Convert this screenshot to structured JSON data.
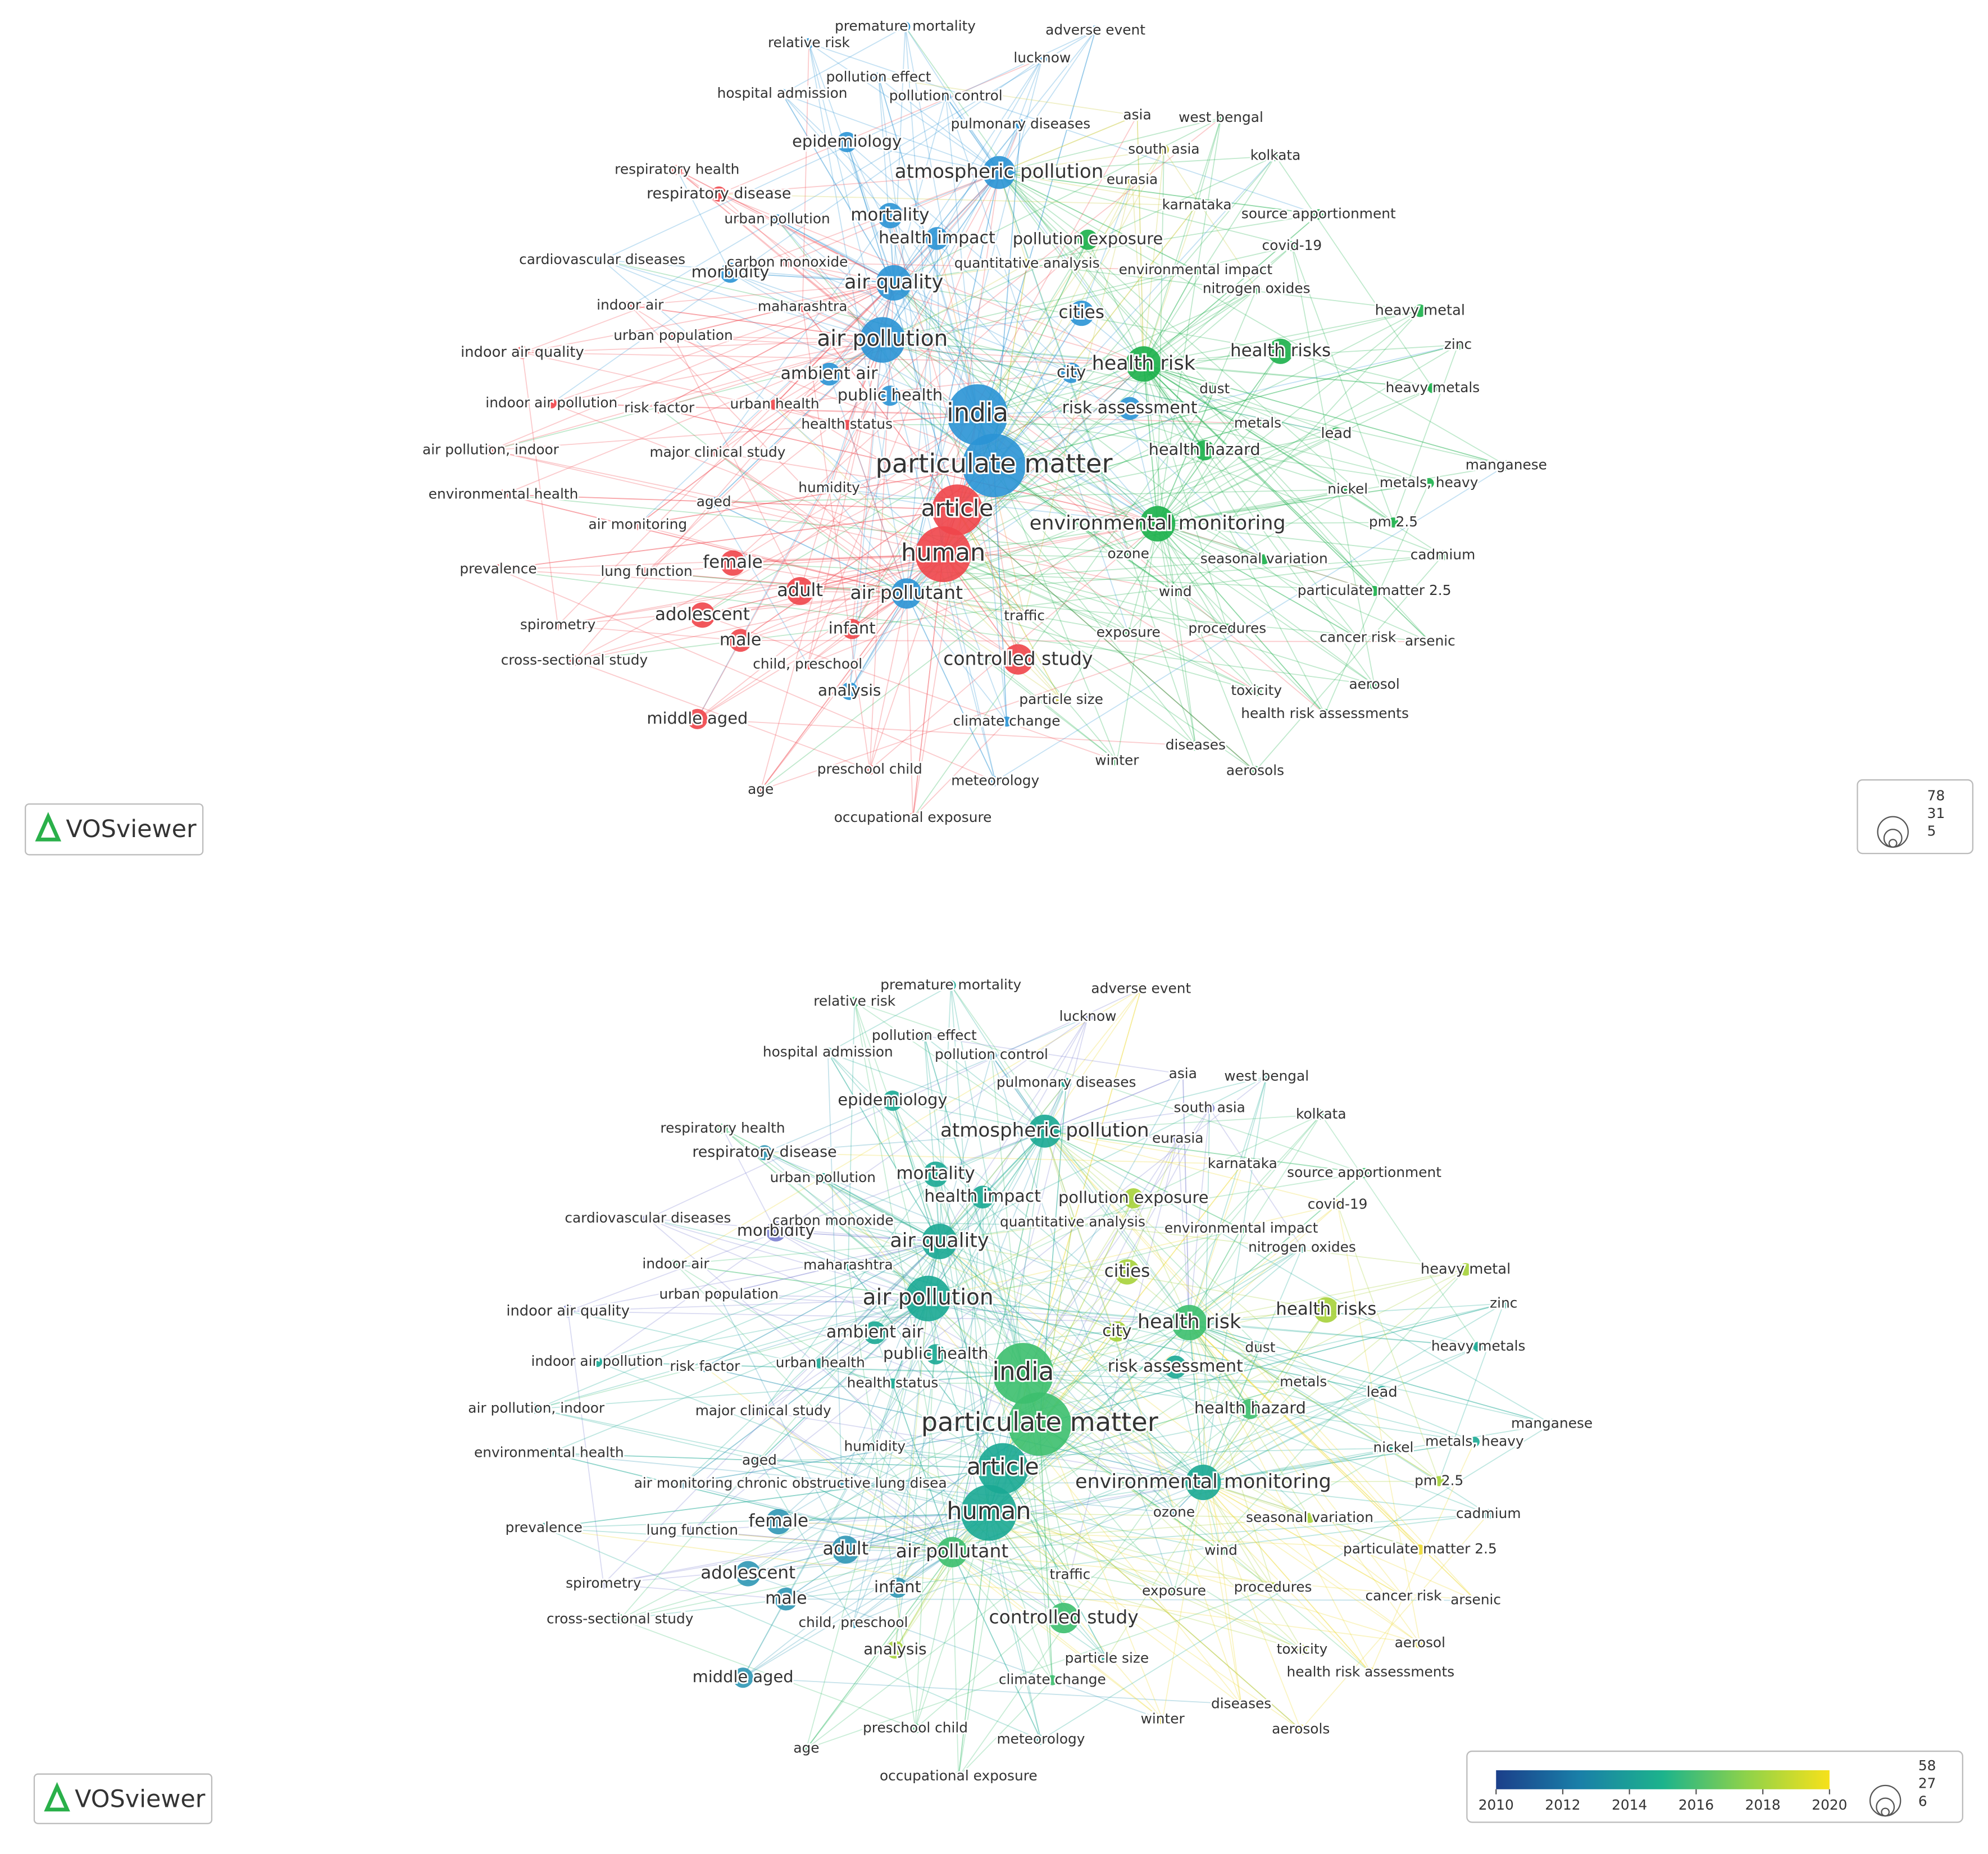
{
  "maps": [
    {
      "nodes": [
        "premature mortality",
        "relative risk",
        "adverse event",
        "lucknow",
        "pollution effect",
        "hospital admission",
        "pollution control",
        "pulmonary diseases",
        "asia",
        "west bengal",
        "south asia",
        "kolkata",
        "epidemiology",
        "atmospheric pollution",
        "eurasia",
        "respiratory health",
        "respiratory disease",
        "karnataka",
        "source apportionment",
        "urban pollution",
        "mortality",
        "health impact",
        "pollution exposure",
        "covid-19",
        "cardiovascular diseases",
        "morbidity",
        "carbon monoxide",
        "quantitative analysis",
        "environmental impact",
        "air quality",
        "nitrogen oxides",
        "indoor air",
        "maharashtra",
        "cities",
        "heavy metal",
        "urban population",
        "air pollution",
        "zinc",
        "indoor air quality",
        "health risks",
        "health risk",
        "ambient air",
        "city",
        "heavy metals",
        "indoor air pollution",
        "risk factor",
        "urban health",
        "public health",
        "dust",
        "india",
        "risk assessment",
        "health status",
        "metals",
        "lead",
        "air pollution, indoor",
        "major clinical study",
        "health hazard",
        "particulate matter",
        "manganese",
        "humidity",
        "metals, heavy",
        "nickel",
        "environmental health",
        "aged",
        "article",
        "environmental monitoring",
        "pm 2.5",
        "air monitoring",
        "human",
        "ozone",
        "seasonal variation",
        "cadmium",
        "prevalence",
        "lung function",
        "female",
        "adult",
        "air pollutant",
        "wind",
        "particulate matter 2.5",
        "spirometry",
        "adolescent",
        "infant",
        "traffic",
        "exposure",
        "procedures",
        "cancer risk",
        "arsenic",
        "male",
        "cross-sectional study",
        "child, preschool",
        "controlled study",
        "analysis",
        "particle size",
        "toxicity",
        "aerosol",
        "health risk assessments",
        "middle aged",
        "climate change",
        "diseases",
        "preschool child",
        "winter",
        "meteorology",
        "aerosols",
        "age",
        "occupational exposure"
      ],
      "cluster_colors": [
        "#f0454a",
        "#2a93d5",
        "#1bb04a",
        "#c9c83a",
        "#e98b2a"
      ],
      "cluster": [
        1,
        1,
        1,
        1,
        1,
        1,
        1,
        1,
        3,
        2,
        3,
        2,
        1,
        1,
        3,
        0,
        0,
        3,
        2,
        1,
        1,
        1,
        2,
        2,
        1,
        1,
        0,
        3,
        2,
        1,
        2,
        0,
        0,
        1,
        2,
        0,
        1,
        2,
        0,
        2,
        2,
        1,
        1,
        2,
        0,
        0,
        0,
        1,
        2,
        1,
        1,
        0,
        2,
        2,
        0,
        0,
        2,
        1,
        2,
        1,
        2,
        2,
        0,
        1,
        0,
        2,
        2,
        0,
        0,
        2,
        2,
        2,
        0,
        0,
        0,
        0,
        1,
        2,
        2,
        0,
        0,
        0,
        4,
        2,
        2,
        2,
        2,
        0,
        0,
        0,
        0,
        1,
        3,
        2,
        2,
        2,
        0,
        1,
        2,
        0,
        2,
        1,
        2,
        0,
        0
      ],
      "logo": "VOSviewer",
      "size_legend": [
        78,
        31,
        5
      ]
    },
    {
      "nodes": [
        "premature mortality",
        "relative risk",
        "adverse event",
        "lucknow",
        "pollution effect",
        "hospital admission",
        "pollution control",
        "pulmonary diseases",
        "asia",
        "west bengal",
        "south asia",
        "kolkata",
        "epidemiology",
        "atmospheric pollution",
        "eurasia",
        "respiratory health",
        "respiratory disease",
        "karnataka",
        "source apportionment",
        "urban pollution",
        "mortality",
        "health impact",
        "pollution exposure",
        "covid-19",
        "cardiovascular diseases",
        "morbidity",
        "carbon monoxide",
        "quantitative analysis",
        "environmental impact",
        "air quality",
        "nitrogen oxides",
        "indoor air",
        "maharashtra",
        "cities",
        "heavy metal",
        "urban population",
        "air pollution",
        "zinc",
        "indoor air quality",
        "health risks",
        "health risk",
        "ambient air",
        "city",
        "heavy metals",
        "indoor air pollution",
        "risk factor",
        "urban health",
        "public health",
        "dust",
        "india",
        "risk assessment",
        "health status",
        "metals",
        "lead",
        "air pollution, indoor",
        "major clinical study",
        "health hazard",
        "particulate matter",
        "manganese",
        "humidity",
        "metals, heavy",
        "nickel",
        "environmental health",
        "aged",
        "article",
        "environmental monitoring",
        "pm 2.5",
        "air monitoring",
        "human",
        "ozone",
        "seasonal variation",
        "cadmium",
        "prevalence",
        "lung function",
        "female",
        "adult",
        "air pollutant",
        "wind",
        "particulate matter 2.5",
        "spirometry",
        "adolescent",
        "infant",
        "traffic",
        "exposure",
        "procedures",
        "cancer risk",
        "arsenic",
        "male",
        "cross-sectional study",
        "child, preschool",
        "controlled study",
        "analysis",
        "particle size",
        "toxicity",
        "aerosol",
        "health risk assessments",
        "middle aged",
        "climate change",
        "diseases",
        "preschool child",
        "winter",
        "meteorology",
        "aerosols",
        "age",
        "occupational exposure",
        "chronic obstructive lung disea"
      ],
      "overlay_colors": [
        "#2c5f9e",
        "#7b7fd0",
        "#2f97b5",
        "#1aa894",
        "#3cbf6e",
        "#a6d23a",
        "#ecd92c"
      ],
      "overlay": [
        3,
        4,
        6,
        1,
        3,
        3,
        2,
        3,
        1,
        3,
        1,
        4,
        3,
        3,
        1,
        4,
        2,
        6,
        4,
        3,
        3,
        3,
        5,
        6,
        1,
        1,
        3,
        5,
        4,
        3,
        3,
        4,
        3,
        5,
        5,
        1,
        3,
        3,
        1,
        5,
        4,
        3,
        5,
        3,
        3,
        2,
        3,
        3,
        4,
        4,
        3,
        3,
        4,
        3,
        3,
        1,
        4,
        4,
        3,
        3,
        3,
        3,
        3,
        3,
        3,
        3,
        5,
        2,
        3,
        2,
        5,
        3,
        3,
        1,
        2,
        2,
        4,
        4,
        6,
        1,
        2,
        2,
        4,
        4,
        5,
        6,
        6,
        2,
        4,
        2,
        4,
        5,
        3,
        5,
        6,
        6,
        2,
        4,
        6,
        4,
        6,
        3,
        6,
        4,
        4,
        2
      ],
      "logo": "VOSviewer",
      "colorbar": {
        "ticks": [
          2010,
          2012,
          2014,
          2016,
          2018,
          2020
        ]
      },
      "size_legend": [
        58,
        27,
        6
      ]
    }
  ]
}
